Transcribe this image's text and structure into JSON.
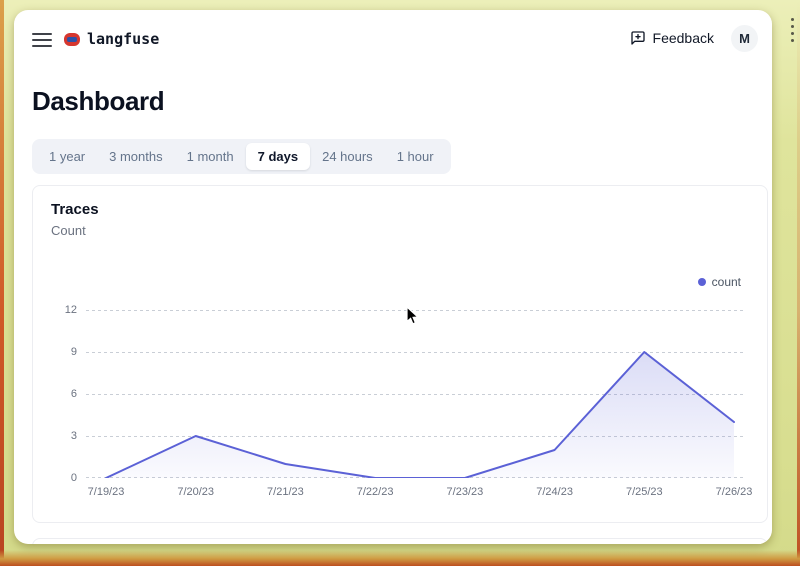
{
  "topbar": {
    "brand": "langfuse",
    "feedback_label": "Feedback",
    "avatar_initial": "M"
  },
  "page": {
    "title": "Dashboard"
  },
  "tabs": {
    "items": [
      {
        "label": "1 year",
        "active": false
      },
      {
        "label": "3 months",
        "active": false
      },
      {
        "label": "1 month",
        "active": false
      },
      {
        "label": "7 days",
        "active": true
      },
      {
        "label": "24 hours",
        "active": false
      },
      {
        "label": "1 hour",
        "active": false
      }
    ]
  },
  "card": {
    "title": "Traces",
    "subtitle": "Count"
  },
  "chart_data": {
    "type": "line",
    "title": "Traces",
    "ylabel": "Count",
    "x": [
      "7/19/23",
      "7/20/23",
      "7/21/23",
      "7/22/23",
      "7/23/23",
      "7/24/23",
      "7/25/23",
      "7/26/23"
    ],
    "series": [
      {
        "name": "count",
        "values": [
          0,
          3,
          1,
          0,
          0,
          2,
          9,
          4
        ],
        "color": "#5b61d6"
      }
    ],
    "ylim": [
      0,
      12
    ],
    "yticks": [
      0,
      3,
      6,
      9,
      12
    ],
    "grid": "horizontal-dashed",
    "legend_position": "top-right",
    "area_fill": true
  },
  "colors": {
    "accent": "#5b61d6",
    "area_fill_top": "rgba(91,97,214,0.22)",
    "area_fill_bottom": "rgba(91,97,214,0.03)",
    "frame": "#dfe49c",
    "frame_edge": "#c2531f",
    "tab_bar_bg": "#f0f2f7",
    "muted_text": "#6b7280"
  },
  "icons": {
    "menu": "hamburger-menu",
    "brand": "knot-logo",
    "feedback": "message-square-plus",
    "legend": "series-dot",
    "pointer": "mouse-cursor"
  }
}
